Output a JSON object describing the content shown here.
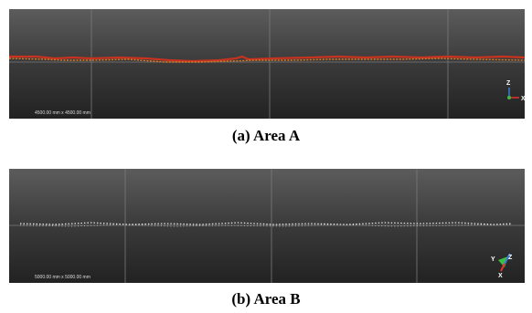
{
  "panels": [
    {
      "caption": "(a) Area A",
      "scale_label": "4500.00 mm x 4500.00 mm",
      "axes": {
        "up": "Z",
        "right": "X"
      }
    },
    {
      "caption": "(b) Area B",
      "scale_label": "5000.00 mm x 5000.00 mm",
      "axes": {
        "left": "Y",
        "up": "Z",
        "down": "X"
      }
    }
  ]
}
